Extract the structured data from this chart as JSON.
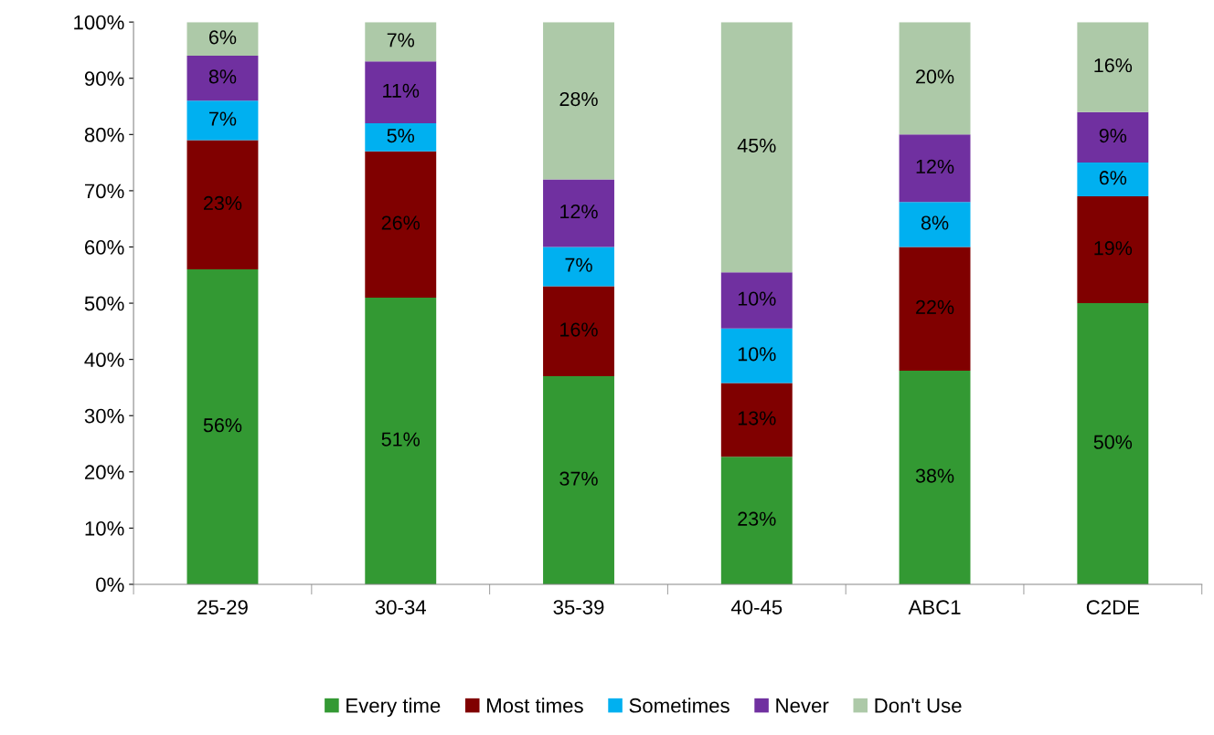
{
  "chart_data": {
    "type": "bar",
    "stacked": true,
    "categories": [
      "25-29",
      "30-34",
      "35-39",
      "40-45",
      "ABC1",
      "C2DE"
    ],
    "series": [
      {
        "name": "Every time",
        "color": "#339933",
        "values": [
          56,
          51,
          37,
          22.7,
          38,
          50
        ],
        "value_labels": [
          "56%",
          "51%",
          "37%",
          "23%",
          "38%",
          "50%"
        ]
      },
      {
        "name": "Most times",
        "color": "#800000",
        "values": [
          23,
          26,
          16,
          13.1,
          22,
          19
        ],
        "value_labels": [
          "23%",
          "26%",
          "16%",
          "13%",
          "22%",
          "19%"
        ]
      },
      {
        "name": "Sometimes",
        "color": "#00b0f0",
        "values": [
          7,
          5,
          7,
          9.7,
          8,
          6
        ],
        "value_labels": [
          "7%",
          "5%",
          "7%",
          "10%",
          "8%",
          "6%"
        ]
      },
      {
        "name": "Never",
        "color": "#7030a0",
        "values": [
          8,
          11,
          12,
          10,
          12,
          9
        ],
        "value_labels": [
          "8%",
          "11%",
          "12%",
          "10%",
          "12%",
          "9%"
        ]
      },
      {
        "name": "Don't Use",
        "color": "#adc9a8",
        "values": [
          6,
          7,
          28,
          44.5,
          20,
          16
        ],
        "value_labels": [
          "6%",
          "7%",
          "28%",
          "45%",
          "20%",
          "16%"
        ]
      }
    ],
    "ylim": [
      0,
      100
    ],
    "yticks": [
      {
        "value": 0,
        "label": "0%"
      },
      {
        "value": 10,
        "label": "10%"
      },
      {
        "value": 20,
        "label": "20%"
      },
      {
        "value": 30,
        "label": "30%"
      },
      {
        "value": 40,
        "label": "40%"
      },
      {
        "value": 50,
        "label": "50%"
      },
      {
        "value": 60,
        "label": "60%"
      },
      {
        "value": 70,
        "label": "70%"
      },
      {
        "value": 80,
        "label": "80%"
      },
      {
        "value": 90,
        "label": "90%"
      },
      {
        "value": 100,
        "label": "100%"
      }
    ],
    "grid": false,
    "legend": "bottom"
  }
}
